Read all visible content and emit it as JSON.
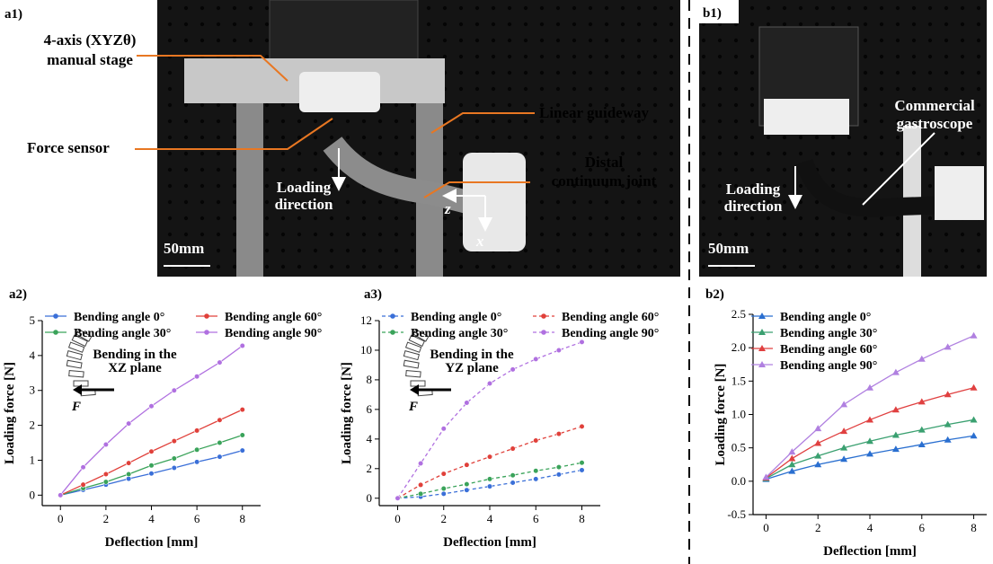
{
  "photos": {
    "a1": {
      "label": "a1)",
      "stage": [
        "4-axis (XYZθ)",
        "manual stage"
      ],
      "sensor": "Force sensor",
      "guide": "Linear guideway",
      "joint": [
        "Distal",
        "continuum joint"
      ],
      "loading": [
        "Loading",
        "direction"
      ],
      "z": "z",
      "x": "x",
      "scale": "50mm"
    },
    "b1": {
      "label": "b1)",
      "scope": [
        "Commercial",
        "gastroscope"
      ],
      "loading": [
        "Loading",
        "direction"
      ],
      "scale": "50mm"
    }
  },
  "chart_data": [
    {
      "type": "line",
      "panel_label": "a2)",
      "xlabel": "Deflection [mm]",
      "ylabel": "Loading force [N]",
      "inset_text": [
        "Bending in the",
        "XZ plane"
      ],
      "force_label": "F",
      "x": [
        0,
        1,
        2,
        3,
        4,
        5,
        6,
        7,
        8
      ],
      "xlim": [
        -0.8,
        8.8
      ],
      "xticks": [
        0,
        2,
        4,
        6,
        8
      ],
      "ylim": [
        -0.3,
        5
      ],
      "yticks": [
        0,
        1,
        2,
        3,
        4,
        5
      ],
      "marker": "circle",
      "line_style": "solid",
      "legend_columns": 2,
      "series": [
        {
          "name": "Bending angle 0°",
          "color": "#3a6fd8",
          "values": [
            0,
            0.15,
            0.3,
            0.47,
            0.62,
            0.78,
            0.95,
            1.1,
            1.28
          ]
        },
        {
          "name": "Bending angle 30°",
          "color": "#3aa35a",
          "values": [
            0,
            0.2,
            0.38,
            0.6,
            0.85,
            1.05,
            1.3,
            1.5,
            1.72
          ]
        },
        {
          "name": "Bending angle 60°",
          "color": "#e0403a",
          "values": [
            0,
            0.3,
            0.6,
            0.92,
            1.25,
            1.55,
            1.85,
            2.15,
            2.45
          ]
        },
        {
          "name": "Bending angle 90°",
          "color": "#b070e0",
          "values": [
            0,
            0.8,
            1.45,
            2.05,
            2.55,
            3.0,
            3.4,
            3.8,
            4.28
          ]
        }
      ]
    },
    {
      "type": "line",
      "panel_label": "a3)",
      "xlabel": "Deflection [mm]",
      "ylabel": "Loading force [N]",
      "inset_text": [
        "Bending in the",
        "YZ plane"
      ],
      "force_label": "F",
      "x": [
        0,
        1,
        2,
        3,
        4,
        5,
        6,
        7,
        8
      ],
      "xlim": [
        -0.8,
        8.8
      ],
      "xticks": [
        0,
        2,
        4,
        6,
        8
      ],
      "ylim": [
        -0.5,
        12
      ],
      "yticks": [
        0,
        2,
        4,
        6,
        8,
        10,
        12
      ],
      "marker": "circle",
      "line_style": "dashed",
      "legend_columns": 2,
      "series": [
        {
          "name": "Bending angle 0°",
          "color": "#3a6fd8",
          "values": [
            0,
            0.1,
            0.3,
            0.55,
            0.8,
            1.05,
            1.3,
            1.6,
            1.9
          ]
        },
        {
          "name": "Bending angle 30°",
          "color": "#3aa35a",
          "values": [
            0,
            0.3,
            0.65,
            0.95,
            1.3,
            1.55,
            1.85,
            2.1,
            2.4
          ]
        },
        {
          "name": "Bending angle 60°",
          "color": "#e0403a",
          "values": [
            0,
            0.9,
            1.65,
            2.25,
            2.8,
            3.35,
            3.9,
            4.35,
            4.85
          ]
        },
        {
          "name": "Bending angle 90°",
          "color": "#b070e0",
          "values": [
            0,
            2.35,
            4.7,
            6.45,
            7.75,
            8.7,
            9.4,
            10.0,
            10.55
          ]
        }
      ]
    },
    {
      "type": "line",
      "panel_label": "b2)",
      "xlabel": "Deflection [mm]",
      "ylabel": "Loading force [N]",
      "x": [
        0,
        1,
        2,
        3,
        4,
        5,
        6,
        7,
        8
      ],
      "xlim": [
        -0.5,
        8.5
      ],
      "xticks": [
        0,
        2,
        4,
        6,
        8
      ],
      "ylim": [
        -0.5,
        2.5
      ],
      "yticks": [
        -0.5,
        {
          "value": 0,
          "label": "0.0"
        },
        0.5,
        {
          "value": 1,
          "label": "1.0"
        },
        1.5,
        {
          "value": 2,
          "label": "2.0"
        },
        2.5
      ],
      "marker": "triangle",
      "line_style": "solid",
      "legend_columns": 1,
      "series": [
        {
          "name": "Bending angle 0°",
          "color": "#2a6fd0",
          "values": [
            0.03,
            0.15,
            0.25,
            0.33,
            0.41,
            0.48,
            0.55,
            0.62,
            0.68
          ]
        },
        {
          "name": "Bending angle 30°",
          "color": "#3aa070",
          "values": [
            0.04,
            0.25,
            0.38,
            0.5,
            0.6,
            0.69,
            0.77,
            0.85,
            0.92
          ]
        },
        {
          "name": "Bending angle 60°",
          "color": "#e04040",
          "values": [
            0.05,
            0.34,
            0.57,
            0.75,
            0.92,
            1.07,
            1.19,
            1.3,
            1.4
          ]
        },
        {
          "name": "Bending angle 90°",
          "color": "#b080e0",
          "values": [
            0.06,
            0.44,
            0.79,
            1.15,
            1.4,
            1.63,
            1.83,
            2.01,
            2.18
          ]
        }
      ]
    }
  ]
}
